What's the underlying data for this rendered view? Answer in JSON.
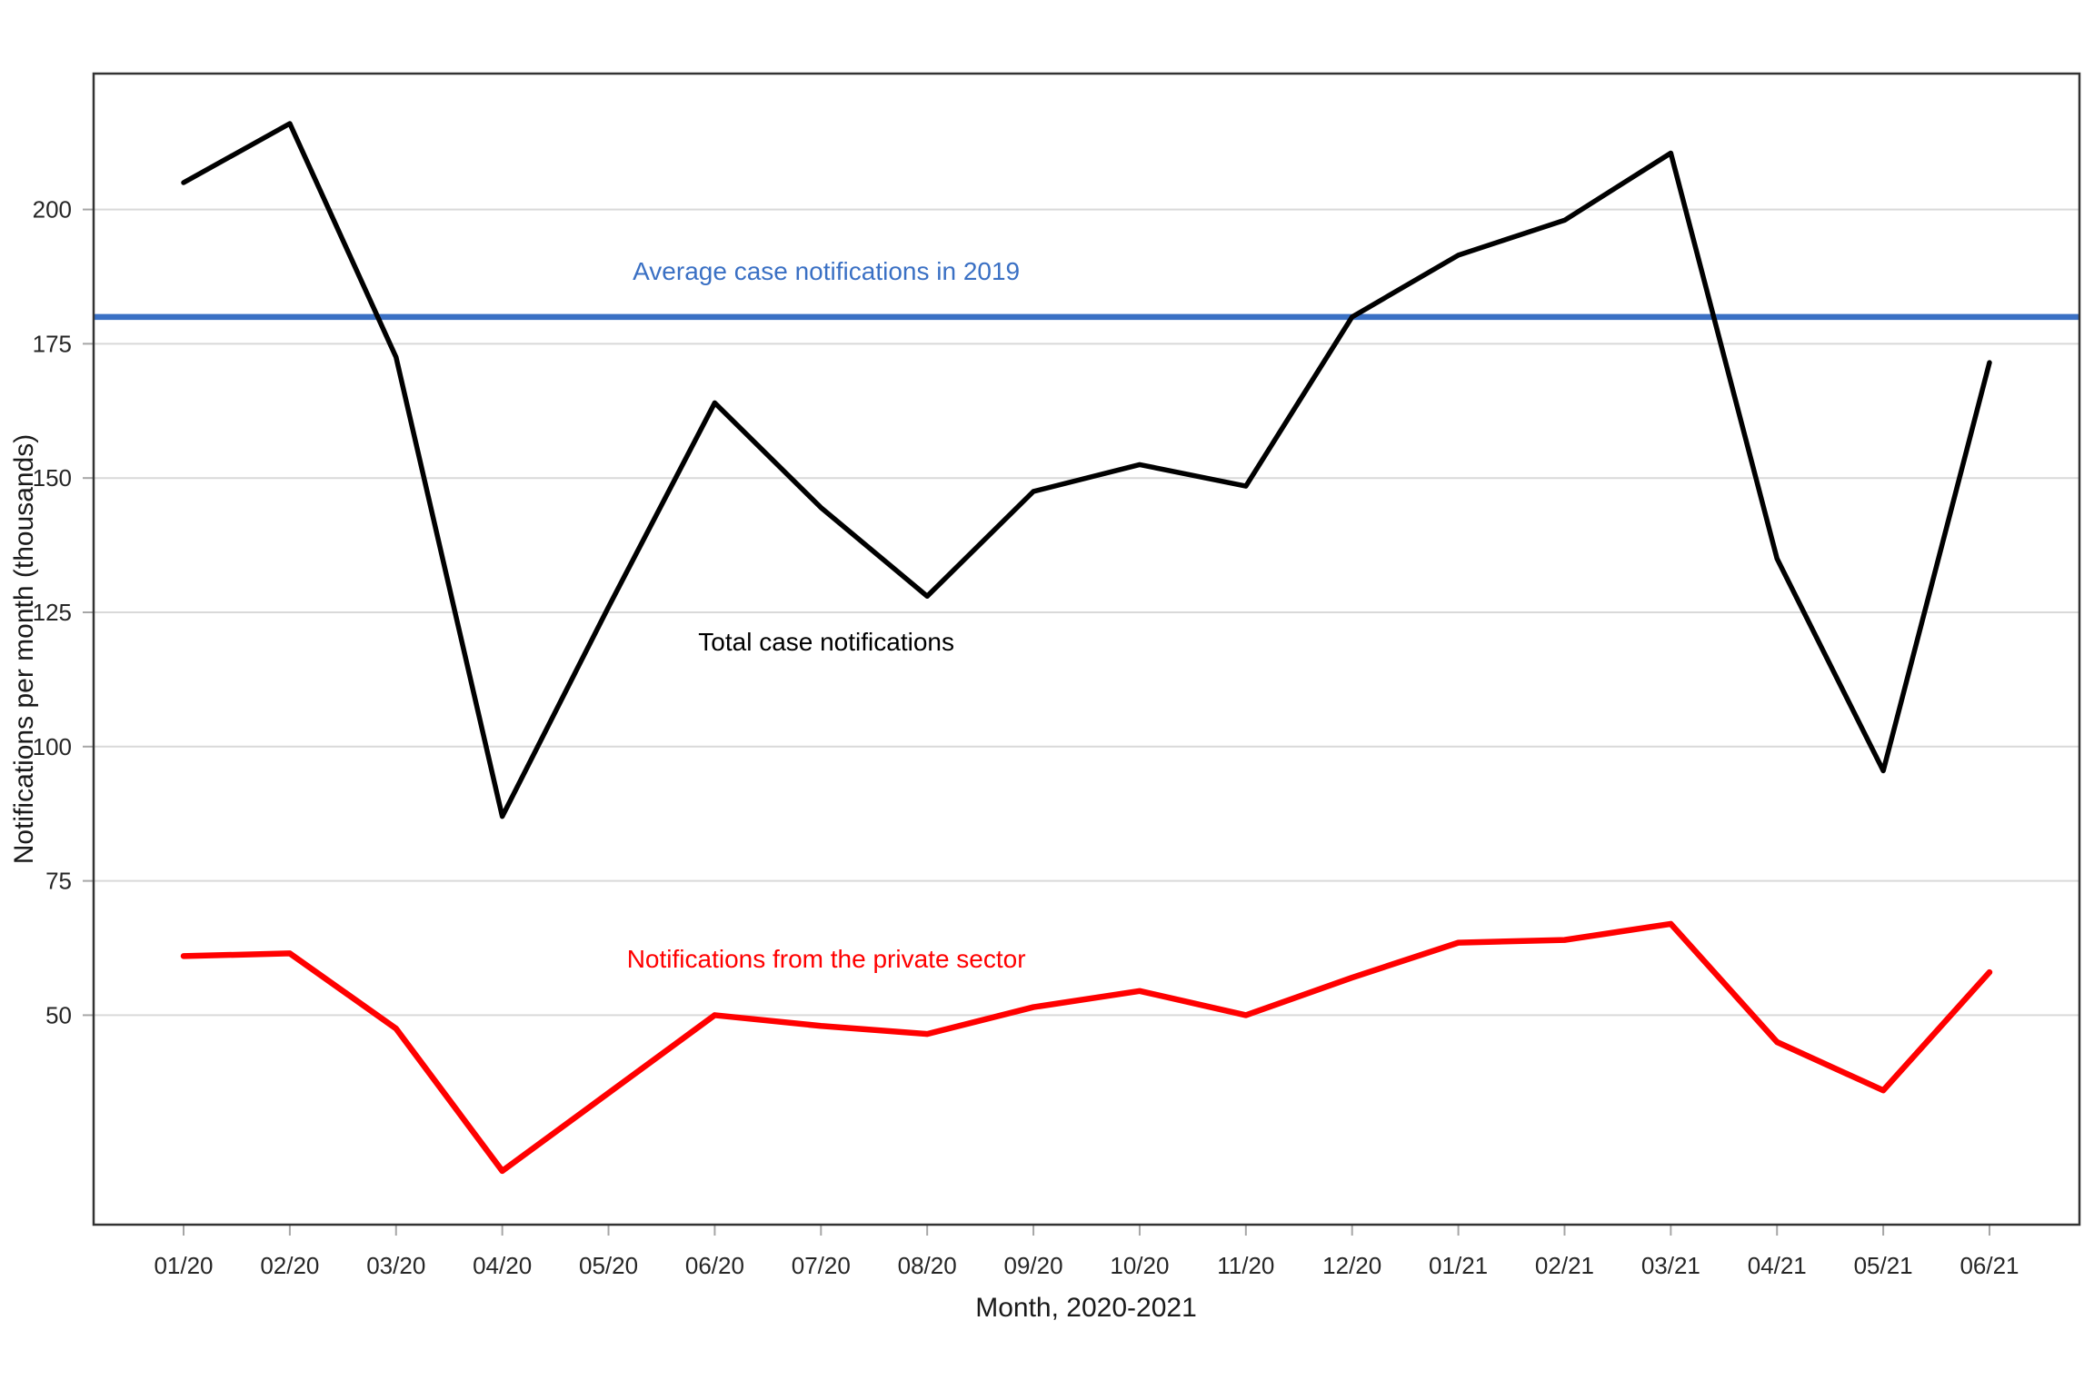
{
  "chart_data": {
    "type": "line",
    "title": "",
    "xlabel": "Month, 2020-2021",
    "ylabel": "Notifications per month (thousands)",
    "categories": [
      "01/20",
      "02/20",
      "03/20",
      "04/20",
      "05/20",
      "06/20",
      "07/20",
      "08/20",
      "09/20",
      "10/20",
      "11/20",
      "12/20",
      "01/21",
      "02/21",
      "03/21",
      "04/21",
      "05/21",
      "06/21"
    ],
    "yticks": [
      50,
      75,
      100,
      125,
      150,
      175,
      200
    ],
    "ylim": [
      11,
      225.3
    ],
    "grid": true,
    "legend_position": "none-direct-labels",
    "colors": {
      "grid": "#d9d9d9",
      "axis_border": "#333333",
      "tick_mark": "#a6a6a6",
      "tick_text": "#262626",
      "background": "#ffffff"
    },
    "reference_line": {
      "label": "Average case notifications in 2019",
      "value": 180,
      "color": "#3a70c4",
      "stroke_width": 6.5,
      "label_month": 6.05,
      "label_value": 188.5
    },
    "series": [
      {
        "name": "Total case notifications",
        "color": "#000000",
        "stroke_width": 5.5,
        "values": [
          205,
          216,
          172.5,
          87,
          126,
          164,
          144.5,
          128,
          147.5,
          152.5,
          148.5,
          180,
          191.5,
          198,
          210.5,
          135,
          95.5,
          171.5
        ],
        "label_month": 6.05,
        "label_value": 119.5
      },
      {
        "name": "Notifications from the private sector",
        "color": "#ff0000",
        "stroke_width": 6.5,
        "values": [
          61,
          61.5,
          47.5,
          21,
          35.5,
          50,
          48,
          46.5,
          51.5,
          54.5,
          50,
          57,
          63.5,
          64,
          67,
          45,
          36,
          58
        ],
        "label_month": 6.05,
        "label_value": 60.5
      }
    ]
  }
}
